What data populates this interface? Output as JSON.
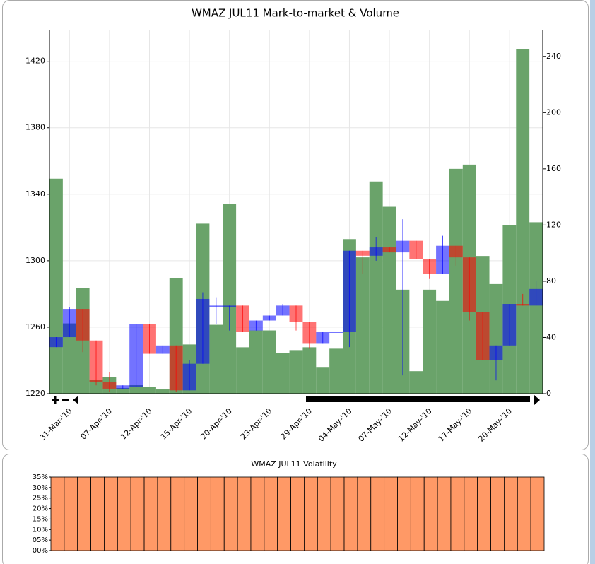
{
  "chart_data": [
    {
      "type": "candlestick",
      "title": "WMAZ JUL11 Mark-to-market & Volume",
      "categories": [
        null,
        "31-Mar-'10",
        null,
        null,
        "07-Apr-'10",
        null,
        null,
        "12-Apr-'10",
        null,
        null,
        "15-Apr-'10",
        null,
        null,
        "20-Apr-'10",
        null,
        null,
        "23-Apr-'10",
        null,
        null,
        "29-Apr-'10",
        null,
        null,
        "04-May-'10",
        null,
        null,
        "07-May-'10",
        null,
        null,
        "12-May-'10",
        null,
        null,
        "17-May-'10",
        null,
        null,
        "20-May-'10",
        null,
        null
      ],
      "open": [
        1248,
        1254,
        1271,
        1252,
        1227,
        1223,
        1224,
        1262,
        1244,
        1249,
        1222,
        1238,
        1272,
        1272,
        1273,
        1258,
        1264,
        1267,
        1273,
        1263,
        1250,
        1257,
        1257,
        1306,
        1303,
        1308,
        1305,
        1312,
        1301,
        1292,
        1309,
        1302,
        1269,
        1240,
        1249,
        1274,
        1273
      ],
      "high": [
        1254,
        1272,
        1271,
        1252,
        1233,
        1225,
        1262,
        1262,
        1249,
        1249,
        1240,
        1281,
        1278,
        1273,
        1273,
        1264,
        1267,
        1274,
        1273,
        1263,
        1257,
        1257,
        1306,
        1306,
        1314,
        1308,
        1325,
        1312,
        1301,
        1315,
        1309,
        1302,
        1269,
        1249,
        1274,
        1280,
        1288
      ],
      "low": [
        1248,
        1254,
        1245,
        1225,
        1221,
        1223,
        1224,
        1244,
        1244,
        1221,
        1222,
        1238,
        1262,
        1258,
        1257,
        1258,
        1264,
        1267,
        1258,
        1247,
        1250,
        1257,
        1248,
        1292,
        1300,
        1305,
        1231,
        1301,
        1289,
        1292,
        1297,
        1264,
        1240,
        1228,
        1249,
        1273,
        1273
      ],
      "close": [
        1254,
        1271,
        1252,
        1227,
        1223,
        1225,
        1262,
        1244,
        1249,
        1222,
        1238,
        1277,
        1273,
        1273,
        1257,
        1264,
        1267,
        1273,
        1263,
        1250,
        1257,
        1257,
        1306,
        1303,
        1308,
        1305,
        1312,
        1301,
        1292,
        1309,
        1302,
        1269,
        1240,
        1249,
        1274,
        1273,
        1283
      ],
      "volume": [
        153,
        50,
        75,
        10,
        12,
        4,
        6,
        5,
        3,
        82,
        35,
        121,
        49,
        135,
        33,
        45,
        45,
        29,
        31,
        33,
        19,
        32,
        110,
        97,
        151,
        133,
        74,
        16,
        74,
        66,
        160,
        163,
        98,
        78,
        120,
        245,
        122
      ],
      "up_color": "#0000ff",
      "down_color": "#ff0000",
      "volume_color": "#6aa36a",
      "ylim": [
        1220,
        1439
      ],
      "yticks": [
        1220,
        1260,
        1300,
        1340,
        1380,
        1420
      ],
      "y2lim": [
        0,
        259
      ],
      "y2ticks": [
        0,
        40,
        80,
        120,
        160,
        200,
        240
      ],
      "grid": true
    },
    {
      "type": "bar",
      "title": "WMAZ JUL11 Volatility",
      "values": [
        35,
        35,
        35,
        35,
        35,
        35,
        35,
        35,
        35,
        35,
        35,
        35,
        35,
        35,
        35,
        35,
        35,
        35,
        35,
        35,
        35,
        35,
        35,
        35,
        35,
        35,
        35,
        35,
        35,
        35,
        35,
        35,
        35,
        35,
        35,
        35,
        35
      ],
      "color": "#ff9966",
      "ylim": [
        0,
        35
      ],
      "yticks": [
        {
          "value": 0,
          "label": "00%"
        },
        {
          "value": 5,
          "label": "05%"
        },
        {
          "value": 10,
          "label": "10%"
        },
        {
          "value": 15,
          "label": "15%"
        },
        {
          "value": 20,
          "label": "20%"
        },
        {
          "value": 25,
          "label": "25%"
        },
        {
          "value": 30,
          "label": "30%"
        },
        {
          "value": 35,
          "label": "35%"
        }
      ]
    }
  ]
}
